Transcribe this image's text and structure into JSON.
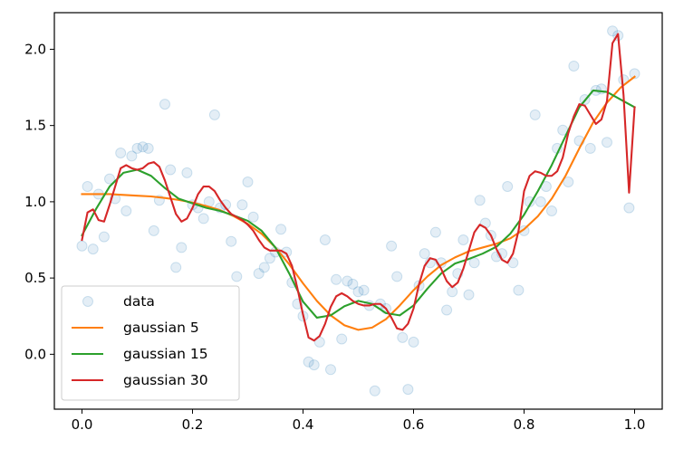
{
  "chart_data": {
    "type": "line",
    "xlim": [
      -0.05,
      1.05
    ],
    "ylim": [
      -0.36,
      2.24
    ],
    "x_ticks": [
      {
        "value": 0.0,
        "label": "0.0"
      },
      {
        "value": 0.2,
        "label": "0.2"
      },
      {
        "value": 0.4,
        "label": "0.4"
      },
      {
        "value": 0.6,
        "label": "0.6"
      },
      {
        "value": 0.8,
        "label": "0.8"
      },
      {
        "value": 1.0,
        "label": "1.0"
      }
    ],
    "y_ticks": [
      {
        "value": 0.0,
        "label": "0.0"
      },
      {
        "value": 0.5,
        "label": "0.5"
      },
      {
        "value": 1.0,
        "label": "1.0"
      },
      {
        "value": 1.5,
        "label": "1.5"
      },
      {
        "value": 2.0,
        "label": "2.0"
      }
    ],
    "grid": false,
    "legend_position": "lower-left",
    "scatter": {
      "name": "data",
      "color": "#1f77b4",
      "x": [
        0.0,
        0.01,
        0.02,
        0.03,
        0.04,
        0.05,
        0.06,
        0.07,
        0.08,
        0.09,
        0.1,
        0.11,
        0.12,
        0.13,
        0.14,
        0.15,
        0.16,
        0.17,
        0.18,
        0.19,
        0.2,
        0.21,
        0.22,
        0.23,
        0.24,
        0.25,
        0.26,
        0.27,
        0.28,
        0.29,
        0.3,
        0.31,
        0.32,
        0.33,
        0.34,
        0.35,
        0.36,
        0.37,
        0.38,
        0.39,
        0.4,
        0.41,
        0.42,
        0.43,
        0.44,
        0.45,
        0.46,
        0.47,
        0.48,
        0.49,
        0.5,
        0.51,
        0.52,
        0.53,
        0.54,
        0.55,
        0.56,
        0.57,
        0.58,
        0.59,
        0.6,
        0.61,
        0.62,
        0.63,
        0.64,
        0.65,
        0.66,
        0.67,
        0.68,
        0.69,
        0.7,
        0.71,
        0.72,
        0.73,
        0.74,
        0.75,
        0.76,
        0.77,
        0.78,
        0.79,
        0.8,
        0.81,
        0.82,
        0.83,
        0.84,
        0.85,
        0.86,
        0.87,
        0.88,
        0.89,
        0.9,
        0.91,
        0.92,
        0.93,
        0.94,
        0.95,
        0.96,
        0.97,
        0.98,
        0.99,
        1.0
      ],
      "y": [
        0.71,
        1.1,
        0.69,
        1.05,
        0.77,
        1.15,
        1.02,
        1.32,
        0.94,
        1.3,
        1.35,
        1.36,
        1.35,
        0.81,
        1.01,
        1.64,
        1.21,
        0.57,
        0.7,
        1.19,
        0.98,
        0.96,
        0.89,
        1.0,
        1.57,
        0.96,
        0.98,
        0.74,
        0.51,
        0.98,
        1.13,
        0.9,
        0.53,
        0.57,
        0.63,
        0.67,
        0.82,
        0.67,
        0.47,
        0.33,
        0.25,
        -0.05,
        -0.07,
        0.08,
        0.75,
        -0.1,
        0.49,
        0.1,
        0.48,
        0.46,
        0.41,
        0.42,
        0.32,
        -0.24,
        0.33,
        0.3,
        0.71,
        0.51,
        0.11,
        -0.23,
        0.08,
        0.45,
        0.66,
        0.6,
        0.8,
        0.6,
        0.29,
        0.41,
        0.53,
        0.75,
        0.39,
        0.6,
        1.01,
        0.86,
        0.78,
        0.64,
        0.66,
        1.1,
        0.6,
        0.42,
        0.81,
        1.0,
        1.57,
        1.0,
        1.1,
        0.94,
        1.35,
        1.47,
        1.13,
        1.89,
        1.4,
        1.67,
        1.35,
        1.73,
        1.74,
        1.39,
        2.12,
        2.09,
        1.8,
        0.96,
        1.84
      ]
    },
    "series": [
      {
        "name": "gaussian 5",
        "color": "#ff7f0e",
        "x": [
          0.0,
          0.025,
          0.05,
          0.075,
          0.1,
          0.125,
          0.15,
          0.175,
          0.2,
          0.225,
          0.25,
          0.275,
          0.3,
          0.325,
          0.35,
          0.375,
          0.4,
          0.425,
          0.45,
          0.475,
          0.5,
          0.525,
          0.55,
          0.575,
          0.6,
          0.625,
          0.65,
          0.675,
          0.7,
          0.725,
          0.75,
          0.775,
          0.8,
          0.825,
          0.85,
          0.875,
          0.9,
          0.925,
          0.95,
          0.975,
          1.0
        ],
        "y": [
          1.05,
          1.05,
          1.05,
          1.045,
          1.04,
          1.035,
          1.025,
          1.012,
          0.995,
          0.972,
          0.945,
          0.905,
          0.855,
          0.79,
          0.7,
          0.59,
          0.465,
          0.35,
          0.255,
          0.19,
          0.16,
          0.175,
          0.23,
          0.32,
          0.42,
          0.51,
          0.585,
          0.635,
          0.675,
          0.7,
          0.725,
          0.76,
          0.82,
          0.905,
          1.02,
          1.17,
          1.35,
          1.52,
          1.65,
          1.75,
          1.82
        ]
      },
      {
        "name": "gaussian 15",
        "color": "#2ca02c",
        "x": [
          0.0,
          0.025,
          0.05,
          0.075,
          0.1,
          0.125,
          0.15,
          0.175,
          0.2,
          0.225,
          0.25,
          0.275,
          0.3,
          0.325,
          0.35,
          0.375,
          0.4,
          0.425,
          0.45,
          0.475,
          0.5,
          0.525,
          0.55,
          0.575,
          0.6,
          0.625,
          0.65,
          0.675,
          0.7,
          0.725,
          0.75,
          0.775,
          0.8,
          0.825,
          0.85,
          0.875,
          0.9,
          0.925,
          0.95,
          0.975,
          1.0
        ],
        "y": [
          0.78,
          0.95,
          1.1,
          1.19,
          1.21,
          1.17,
          1.09,
          1.02,
          0.99,
          0.96,
          0.94,
          0.91,
          0.875,
          0.81,
          0.7,
          0.53,
          0.345,
          0.24,
          0.255,
          0.315,
          0.35,
          0.33,
          0.27,
          0.255,
          0.32,
          0.43,
          0.53,
          0.595,
          0.625,
          0.66,
          0.705,
          0.79,
          0.915,
          1.07,
          1.24,
          1.43,
          1.62,
          1.73,
          1.72,
          1.67,
          1.62
        ]
      },
      {
        "name": "gaussian 30",
        "color": "#d62728",
        "x": [
          0.0,
          0.01,
          0.02,
          0.03,
          0.04,
          0.05,
          0.06,
          0.07,
          0.08,
          0.09,
          0.1,
          0.11,
          0.12,
          0.13,
          0.14,
          0.15,
          0.16,
          0.17,
          0.18,
          0.19,
          0.2,
          0.21,
          0.22,
          0.23,
          0.24,
          0.25,
          0.26,
          0.27,
          0.28,
          0.29,
          0.3,
          0.31,
          0.32,
          0.33,
          0.34,
          0.35,
          0.36,
          0.37,
          0.38,
          0.39,
          0.4,
          0.41,
          0.42,
          0.43,
          0.44,
          0.45,
          0.46,
          0.47,
          0.48,
          0.49,
          0.5,
          0.51,
          0.52,
          0.53,
          0.54,
          0.55,
          0.56,
          0.57,
          0.58,
          0.59,
          0.6,
          0.61,
          0.62,
          0.63,
          0.64,
          0.65,
          0.66,
          0.67,
          0.68,
          0.69,
          0.7,
          0.71,
          0.72,
          0.73,
          0.74,
          0.75,
          0.76,
          0.77,
          0.78,
          0.79,
          0.8,
          0.81,
          0.82,
          0.83,
          0.84,
          0.85,
          0.86,
          0.87,
          0.88,
          0.89,
          0.9,
          0.91,
          0.92,
          0.93,
          0.94,
          0.95,
          0.96,
          0.97,
          0.98,
          0.99,
          1.0
        ],
        "y": [
          0.75,
          0.93,
          0.95,
          0.88,
          0.87,
          0.98,
          1.1,
          1.22,
          1.24,
          1.22,
          1.21,
          1.22,
          1.25,
          1.26,
          1.23,
          1.14,
          1.03,
          0.92,
          0.87,
          0.89,
          0.96,
          1.05,
          1.1,
          1.1,
          1.07,
          1.01,
          0.96,
          0.92,
          0.9,
          0.88,
          0.85,
          0.81,
          0.75,
          0.7,
          0.68,
          0.68,
          0.68,
          0.66,
          0.58,
          0.43,
          0.26,
          0.11,
          0.09,
          0.12,
          0.2,
          0.31,
          0.38,
          0.4,
          0.38,
          0.35,
          0.33,
          0.32,
          0.32,
          0.33,
          0.33,
          0.3,
          0.24,
          0.17,
          0.16,
          0.2,
          0.3,
          0.46,
          0.58,
          0.63,
          0.62,
          0.56,
          0.48,
          0.44,
          0.47,
          0.56,
          0.68,
          0.8,
          0.85,
          0.83,
          0.78,
          0.69,
          0.62,
          0.6,
          0.66,
          0.81,
          1.07,
          1.17,
          1.2,
          1.19,
          1.17,
          1.17,
          1.2,
          1.29,
          1.45,
          1.56,
          1.64,
          1.63,
          1.57,
          1.51,
          1.54,
          1.66,
          2.04,
          2.1,
          1.7,
          1.06,
          1.62
        ]
      }
    ]
  }
}
